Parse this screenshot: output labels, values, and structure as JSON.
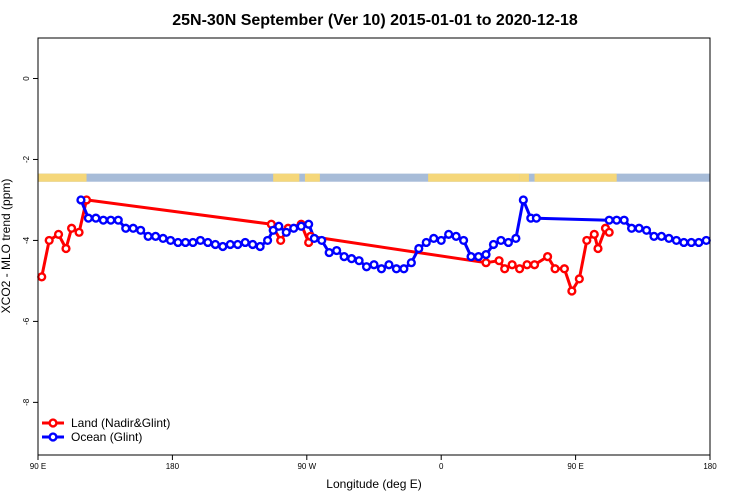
{
  "chart_data": {
    "type": "line",
    "title": "25N-30N September (Ver 10)   2015-01-01 to 2020-12-18",
    "xlabel": "Longitude (deg E)",
    "ylabel": "XCO2 - MLO trend (ppm)",
    "xlim": [
      90,
      450
    ],
    "ylim": [
      -9.3,
      1.0
    ],
    "x_ticks": [
      {
        "value": 90,
        "label": "90 E"
      },
      {
        "value": 162,
        "label": "180"
      },
      {
        "value": 234,
        "label": "90 W"
      },
      {
        "value": 306,
        "label": "0"
      },
      {
        "value": 378,
        "label": "90 E"
      },
      {
        "value": 450,
        "label": "180"
      }
    ],
    "y_ticks": [
      0,
      -2,
      -4,
      -6,
      -8
    ],
    "grid": false,
    "legend_position": "bottom-left",
    "land_band": {
      "y_range": [
        -2.55,
        -2.35
      ],
      "land_color": "#f5d77a",
      "ocean_color": "#a7bcd8",
      "land_segments": [
        [
          90,
          116
        ],
        [
          216,
          230
        ],
        [
          233,
          241
        ],
        [
          299,
          348
        ],
        [
          348,
          353
        ],
        [
          356,
          400
        ]
      ]
    },
    "series": [
      {
        "name": "Land (Nadir&Glint)",
        "color": "#ff0000",
        "x": [
          92,
          96,
          101,
          105,
          108,
          112,
          116,
          215,
          220,
          224,
          231,
          235,
          236,
          330,
          337,
          340,
          344,
          348,
          352,
          356,
          363,
          367,
          372,
          376,
          380,
          384,
          388,
          390,
          394,
          396
        ],
        "y": [
          -4.9,
          -4.0,
          -3.85,
          -4.2,
          -3.7,
          -3.8,
          -3.0,
          -3.6,
          -4.0,
          -3.7,
          -3.6,
          -4.05,
          -3.9,
          -4.55,
          -4.5,
          -4.7,
          -4.6,
          -4.7,
          -4.6,
          -4.6,
          -4.4,
          -4.7,
          -4.7,
          -5.25,
          -4.95,
          -4.0,
          -3.85,
          -4.2,
          -3.7,
          -3.8
        ]
      },
      {
        "name": "Ocean (Glint)",
        "color": "#0000ff",
        "x": [
          113,
          117,
          121,
          125,
          129,
          133,
          137,
          141,
          145,
          149,
          153,
          157,
          161,
          165,
          169,
          173,
          177,
          181,
          185,
          189,
          193,
          197,
          201,
          205,
          209,
          213,
          216,
          219,
          223,
          227,
          231,
          235,
          238,
          242,
          246,
          250,
          254,
          258,
          262,
          266,
          270,
          274,
          278,
          282,
          286,
          290,
          294,
          298,
          302,
          306,
          310,
          314,
          318,
          322,
          326,
          330,
          334,
          338,
          342,
          346,
          350,
          354,
          357,
          396,
          400,
          404,
          408,
          412,
          416,
          420,
          424,
          428,
          432,
          436,
          440,
          444,
          448
        ],
        "y": [
          -3.0,
          -3.45,
          -3.45,
          -3.5,
          -3.5,
          -3.5,
          -3.7,
          -3.7,
          -3.75,
          -3.9,
          -3.9,
          -3.95,
          -4.0,
          -4.05,
          -4.05,
          -4.05,
          -4.0,
          -4.05,
          -4.1,
          -4.15,
          -4.1,
          -4.1,
          -4.05,
          -4.1,
          -4.15,
          -4.0,
          -3.75,
          -3.65,
          -3.8,
          -3.7,
          -3.65,
          -3.6,
          -3.95,
          -4.0,
          -4.3,
          -4.25,
          -4.4,
          -4.45,
          -4.5,
          -4.65,
          -4.6,
          -4.7,
          -4.6,
          -4.7,
          -4.7,
          -4.55,
          -4.2,
          -4.05,
          -3.95,
          -4.0,
          -3.85,
          -3.9,
          -4.0,
          -4.4,
          -4.4,
          -4.35,
          -4.1,
          -4.0,
          -4.05,
          -3.95,
          -3.0,
          -3.45,
          -3.45,
          -3.5,
          -3.5,
          -3.5,
          -3.7,
          -3.7,
          -3.75,
          -3.9,
          -3.9,
          -3.95,
          -4.0,
          -4.05,
          -4.05,
          -4.05,
          -4.0
        ]
      }
    ]
  }
}
